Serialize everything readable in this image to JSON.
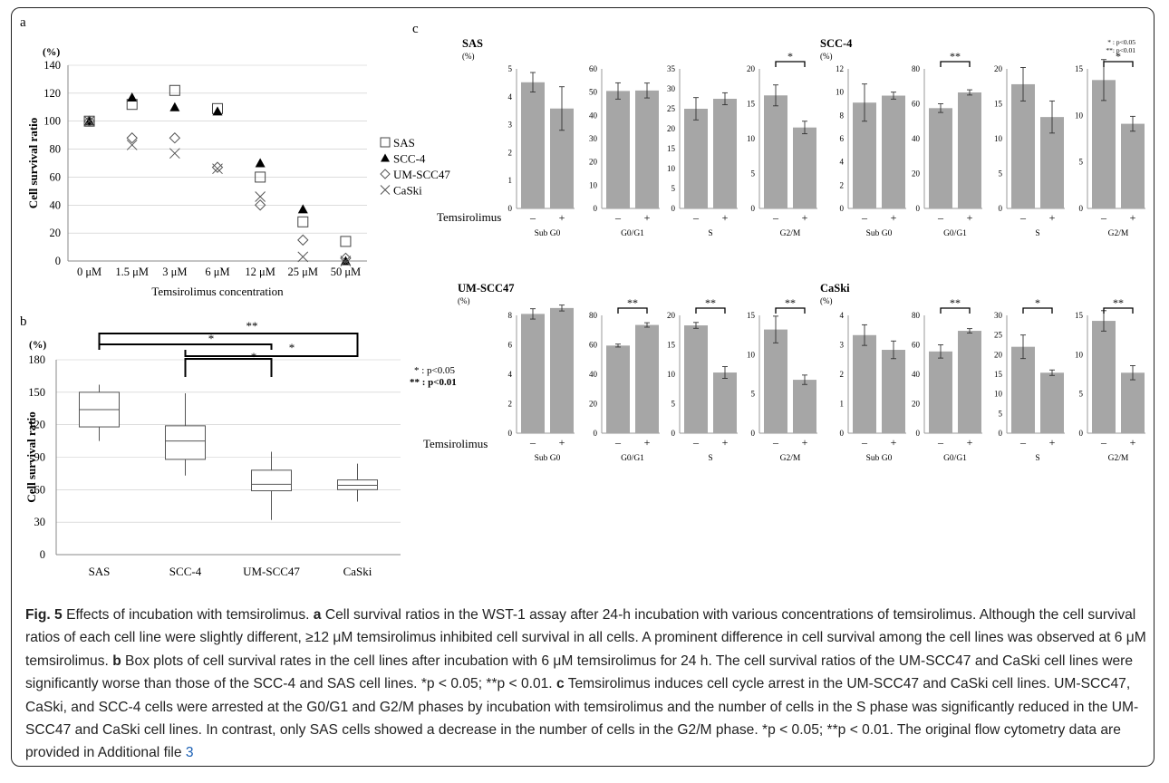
{
  "panel_labels": {
    "a": "a",
    "b": "b",
    "c": "c"
  },
  "legend_a": [
    {
      "symbol": "square",
      "label": "SAS"
    },
    {
      "symbol": "triangle",
      "label": "SCC-4"
    },
    {
      "symbol": "diamond",
      "label": "UM-SCC47"
    },
    {
      "symbol": "cross",
      "label": "CaSki"
    }
  ],
  "significance_key": {
    "one": "* :  p<0.05",
    "two": "** :  p<0.01"
  },
  "significance_key_c": {
    "one": "* : p<0.05",
    "two": "**: p<0.01"
  },
  "temsirolimus_label": "Temsirolimus",
  "caption": {
    "fig_label": "Fig. 5",
    "title": " Effects of incubation with temsirolimus. ",
    "a_label": "a",
    "a_text": " Cell survival ratios in the WST-1 assay after 24-h incubation with various concentrations of temsirolimus. Although the cell survival ratios of each cell line were slightly different, ≥12 μM temsirolimus inhibited cell survival in all cells. A prominent difference in cell survival among the cell lines was observed at 6 μM temsirolimus. ",
    "b_label": "b",
    "b_text": " Box plots of cell survival rates in the cell lines after incubation with 6 μM temsirolimus for 24 h. The cell survival ratios of the UM-SCC47 and CaSki cell lines were significantly worse than those of the SCC-4 and SAS cell lines. *p < 0.05; **p < 0.01. ",
    "c_label": "c",
    "c_text": " Temsirolimus induces cell cycle arrest in the UM-SCC47 and CaSki cell lines. UM-SCC47, CaSki, and SCC-4 cells were arrested at the G0/G1 and G2/M phases by incubation with temsirolimus and the number of cells in the S phase was significantly reduced in the UM-SCC47 and CaSki cell lines. In contrast, only SAS cells showed a decrease in the number of cells in the G2/M phase. *p < 0.05; **p < 0.01. The original flow cytometry data are provided in Additional file ",
    "link": "3"
  },
  "chart_data": [
    {
      "panel": "a",
      "type": "scatter",
      "ylabel": "Cell survival ratio",
      "yunit": "(%)",
      "xlabel": "Temsirolimus    concentration",
      "categories": [
        "0 μM",
        "1.5 μM",
        "3 μM",
        "6 μM",
        "12 μM",
        "25 μM",
        "50 μM"
      ],
      "ylim": [
        0,
        140
      ],
      "yticks": [
        0,
        20,
        40,
        60,
        80,
        100,
        120,
        140
      ],
      "series": [
        {
          "name": "SAS",
          "marker": "square",
          "values": [
            100,
            112,
            122,
            109,
            60,
            28,
            14
          ]
        },
        {
          "name": "SCC-4",
          "marker": "triangle",
          "values": [
            100,
            117,
            110,
            107,
            70,
            37,
            0
          ]
        },
        {
          "name": "UM-SCC47",
          "marker": "diamond",
          "values": [
            100,
            88,
            88,
            67,
            40,
            15,
            2
          ]
        },
        {
          "name": "CaSki",
          "marker": "cross",
          "values": [
            100,
            83,
            77,
            66,
            46,
            3,
            0
          ]
        }
      ]
    },
    {
      "panel": "b",
      "type": "box",
      "ylabel": "Cell survival ratio",
      "yunit": "(%)",
      "categories": [
        "SAS",
        "SCC-4",
        "UM-SCC47",
        "CaSki"
      ],
      "ylim": [
        0,
        180
      ],
      "yticks": [
        0,
        30,
        60,
        90,
        120,
        150,
        180
      ],
      "boxes": [
        {
          "min": 105,
          "q1": 118,
          "median": 134,
          "q3": 150,
          "max": 157
        },
        {
          "min": 73,
          "q1": 88,
          "median": 105,
          "q3": 119,
          "max": 149
        },
        {
          "min": 32,
          "q1": 59,
          "median": 65,
          "q3": 78,
          "max": 95
        },
        {
          "min": 49,
          "q1": 60,
          "median": 64,
          "q3": 69,
          "max": 84
        }
      ],
      "comparisons": [
        {
          "from": 0,
          "to": 3,
          "label": "**"
        },
        {
          "from": 0,
          "to": 2,
          "label": "*"
        },
        {
          "from": 1,
          "to": 3,
          "label": "*"
        },
        {
          "from": 1,
          "to": 2,
          "label": "*"
        }
      ]
    },
    {
      "panel": "c",
      "type": "bar",
      "groups": [
        {
          "cell_line": "SAS",
          "unit": "(%)",
          "subplots": [
            {
              "phase": "Sub G0",
              "ylim": [
                0,
                5
              ],
              "yticks": [
                0,
                1,
                2,
                3,
                4,
                5
              ],
              "values": [
                4.52,
                3.58
              ],
              "errors": [
                0.35,
                0.78
              ],
              "sig": ""
            },
            {
              "phase": "G0/G1",
              "ylim": [
                0,
                60
              ],
              "yticks": [
                0,
                10,
                20,
                30,
                40,
                50,
                60
              ],
              "values": [
                50.5,
                50.7
              ],
              "errors": [
                3.5,
                3.2
              ],
              "sig": ""
            },
            {
              "phase": "S",
              "ylim": [
                0,
                35
              ],
              "yticks": [
                0,
                5,
                10,
                15,
                20,
                25,
                30,
                35
              ],
              "values": [
                25.0,
                27.5
              ],
              "errors": [
                2.8,
                1.5
              ],
              "sig": ""
            },
            {
              "phase": "G2/M",
              "ylim": [
                0,
                20
              ],
              "yticks": [
                0,
                5,
                10,
                15,
                20
              ],
              "values": [
                16.2,
                11.6
              ],
              "errors": [
                1.5,
                0.9
              ],
              "sig": "*"
            }
          ]
        },
        {
          "cell_line": "SCC-4",
          "unit": "(%)",
          "subplots": [
            {
              "phase": "Sub G0",
              "ylim": [
                0,
                12
              ],
              "yticks": [
                0,
                2,
                4,
                6,
                8,
                10,
                12
              ],
              "values": [
                9.1,
                9.7
              ],
              "errors": [
                1.6,
                0.3
              ],
              "sig": ""
            },
            {
              "phase": "G0/G1",
              "ylim": [
                0,
                80
              ],
              "yticks": [
                0,
                20,
                40,
                60,
                80
              ],
              "values": [
                57.5,
                66.5
              ],
              "errors": [
                2.5,
                1.5
              ],
              "sig": "**"
            },
            {
              "phase": "S",
              "ylim": [
                0,
                20
              ],
              "yticks": [
                0,
                5,
                10,
                15,
                20
              ],
              "values": [
                17.8,
                13.1
              ],
              "errors": [
                2.4,
                2.3
              ],
              "sig": ""
            },
            {
              "phase": "G2/M",
              "ylim": [
                0,
                15
              ],
              "yticks": [
                0,
                5,
                10,
                15
              ],
              "values": [
                13.8,
                9.1
              ],
              "errors": [
                2.2,
                0.8
              ],
              "sig": "*"
            }
          ]
        },
        {
          "cell_line": "UM-SCC47",
          "unit": "(%)",
          "subplots": [
            {
              "phase": "Sub G0",
              "ylim": [
                0,
                8
              ],
              "yticks": [
                0,
                2,
                4,
                6,
                8
              ],
              "values": [
                8.1,
                8.5
              ],
              "errors": [
                0.35,
                0.2
              ],
              "sig": ""
            },
            {
              "phase": "G0/G1",
              "ylim": [
                0,
                80
              ],
              "yticks": [
                0,
                20,
                40,
                60,
                80
              ],
              "values": [
                59.5,
                73.5
              ],
              "errors": [
                1.0,
                1.5
              ],
              "sig": "**"
            },
            {
              "phase": "S",
              "ylim": [
                0,
                20
              ],
              "yticks": [
                0,
                5,
                10,
                15,
                20
              ],
              "values": [
                18.3,
                10.3
              ],
              "errors": [
                0.5,
                1.0
              ],
              "sig": "**"
            },
            {
              "phase": "G2/M",
              "ylim": [
                0,
                15
              ],
              "yticks": [
                0,
                5,
                10,
                15
              ],
              "values": [
                13.2,
                6.8
              ],
              "errors": [
                1.7,
                0.6
              ],
              "sig": "**"
            }
          ]
        },
        {
          "cell_line": "CaSki",
          "unit": "(%)",
          "subplots": [
            {
              "phase": "Sub G0",
              "ylim": [
                0,
                4
              ],
              "yticks": [
                0,
                1,
                2,
                3,
                4
              ],
              "values": [
                3.33,
                2.83
              ],
              "errors": [
                0.35,
                0.3
              ],
              "sig": ""
            },
            {
              "phase": "G0/G1",
              "ylim": [
                0,
                80
              ],
              "yticks": [
                0,
                20,
                40,
                60,
                80
              ],
              "values": [
                55.5,
                69.5
              ],
              "errors": [
                4.5,
                1.5
              ],
              "sig": "**"
            },
            {
              "phase": "S",
              "ylim": [
                0,
                30
              ],
              "yticks": [
                0,
                5,
                10,
                15,
                20,
                25,
                30
              ],
              "values": [
                22.0,
                15.4
              ],
              "errors": [
                3.0,
                0.7
              ],
              "sig": "*"
            },
            {
              "phase": "G2/M",
              "ylim": [
                0,
                15
              ],
              "yticks": [
                0,
                5,
                10,
                15
              ],
              "values": [
                14.3,
                7.7
              ],
              "errors": [
                1.3,
                0.9
              ],
              "sig": "**"
            }
          ]
        }
      ],
      "conditions": [
        "–",
        "+"
      ]
    }
  ]
}
